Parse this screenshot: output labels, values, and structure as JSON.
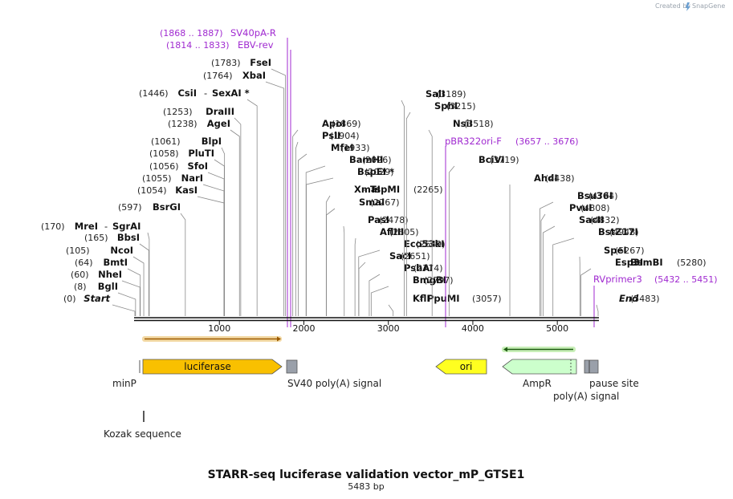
{
  "credit": "Created by",
  "brand": "SnapGene",
  "title": "STARR-seq luciferase validation vector_mP_GTSE1",
  "length_label": "5483 bp",
  "total_bp": 5483,
  "ticks": [
    {
      "label": "1000",
      "bp": 1000
    },
    {
      "label": "2000",
      "bp": 2000
    },
    {
      "label": "3000",
      "bp": 3000
    },
    {
      "label": "4000",
      "bp": 4000
    },
    {
      "label": "5000",
      "bp": 5000
    }
  ],
  "sites": [
    {
      "name": "Start",
      "pos": "(0)",
      "bp": 0
    },
    {
      "name": "BglI",
      "pos": "(8)",
      "bp": 8
    },
    {
      "name": "NheI",
      "pos": "(60)",
      "bp": 60
    },
    {
      "name": "BmtI",
      "pos": "(64)",
      "bp": 64
    },
    {
      "name": "NcoI",
      "pos": "(105)",
      "bp": 105
    },
    {
      "name": "BbsI",
      "pos": "(165)",
      "bp": 165
    },
    {
      "name": "MreI",
      "pos": "(170)",
      "bp": 170,
      "alt": "SgrAI"
    },
    {
      "name": "BsrGI",
      "pos": "(597)",
      "bp": 597
    },
    {
      "name": "KasI",
      "pos": "(1054)",
      "bp": 1054
    },
    {
      "name": "NarI",
      "pos": "(1055)",
      "bp": 1055
    },
    {
      "name": "SfoI",
      "pos": "(1056)",
      "bp": 1056
    },
    {
      "name": "PluTI",
      "pos": "(1058)",
      "bp": 1058
    },
    {
      "name": "BlpI",
      "pos": "(1061)",
      "bp": 1061
    },
    {
      "name": "AgeI",
      "pos": "(1238)",
      "bp": 1238
    },
    {
      "name": "DraIII",
      "pos": "(1253)",
      "bp": 1253
    },
    {
      "name": "CsiI",
      "pos": "(1446)",
      "bp": 1446,
      "alt": "SexAI *"
    },
    {
      "name": "XbaI",
      "pos": "(1764)",
      "bp": 1764
    },
    {
      "name": "FseI",
      "pos": "(1783)",
      "bp": 1783
    },
    {
      "name": "ApoI",
      "pos": "(1869)",
      "bp": 1869
    },
    {
      "name": "PslI",
      "pos": "(1904)",
      "bp": 1904
    },
    {
      "name": "MfeI",
      "pos": "(1933)",
      "bp": 1933
    },
    {
      "name": "BamHI",
      "pos": "(2026)",
      "bp": 2026
    },
    {
      "name": "BspEI *",
      "pos": "(2029)",
      "bp": 2029
    },
    {
      "name": "XmaI",
      "pos": "(2265)",
      "bp": 2265,
      "alt": "TspMI"
    },
    {
      "name": "SmaI",
      "pos": "(2267)",
      "bp": 2267
    },
    {
      "name": "PasI",
      "pos": "(2478)",
      "bp": 2478
    },
    {
      "name": "AflIII",
      "pos": "(2605)",
      "bp": 2605
    },
    {
      "name": "Eco53kI",
      "pos": "(2649)",
      "bp": 2649
    },
    {
      "name": "SacI",
      "pos": "(2651)",
      "bp": 2651
    },
    {
      "name": "PshAI",
      "pos": "(2774)",
      "bp": 2774
    },
    {
      "name": "BmgBI",
      "pos": "(2797)",
      "bp": 2797
    },
    {
      "name": "KflI",
      "pos": "(3057)",
      "bp": 3057,
      "alt": "PpuMI"
    },
    {
      "name": "SalI",
      "pos": "(3189)",
      "bp": 3189
    },
    {
      "name": "SphI",
      "pos": "(3215)",
      "bp": 3215
    },
    {
      "name": "NsiI",
      "pos": "(3518)",
      "bp": 3518
    },
    {
      "name": "BciVI",
      "pos": "(3719)",
      "bp": 3719
    },
    {
      "name": "AhdI",
      "pos": "(4438)",
      "bp": 4438
    },
    {
      "name": "Bsu36I",
      "pos": "(4794)",
      "bp": 4794
    },
    {
      "name": "PvuI",
      "pos": "(4808)",
      "bp": 4808
    },
    {
      "name": "SacII",
      "pos": "(4832)",
      "bp": 4832
    },
    {
      "name": "BstZ17I",
      "pos": "(4948)",
      "bp": 4948
    },
    {
      "name": "SpeI",
      "pos": "(5267)",
      "bp": 5267
    },
    {
      "name": "Esp3I",
      "pos": "(5280)",
      "bp": 5280,
      "alt": "BsmBI"
    },
    {
      "name": "End",
      "pos": "(5483)",
      "bp": 5483
    }
  ],
  "primers": [
    {
      "name": "SV40pA-R",
      "range": "(1868 .. 1887)",
      "bp": 1877
    },
    {
      "name": "EBV-rev",
      "range": "(1814 .. 1833)",
      "bp": 1823
    },
    {
      "name": "pBR322ori-F",
      "range": "(3657 .. 3676)",
      "bp": 3667
    },
    {
      "name": "RVprimer3",
      "range": "(5432 .. 5451)",
      "bp": 5441
    }
  ],
  "features": [
    {
      "name": "luciferase",
      "start": 80,
      "end": 1730,
      "color": "#f9c000"
    },
    {
      "name": "ori",
      "start": 3550,
      "end": 4150,
      "color": "#ffff20"
    },
    {
      "name": "AmpR",
      "start": 4250,
      "end": 5130,
      "color": "#ccffcc"
    }
  ],
  "labels": {
    "minP": "minP",
    "sv40": "SV40 poly(A) signal",
    "ampr": "AmpR",
    "pause": "pause site",
    "polyA": "poly(A) signal",
    "kozak": "Kozak sequence"
  }
}
